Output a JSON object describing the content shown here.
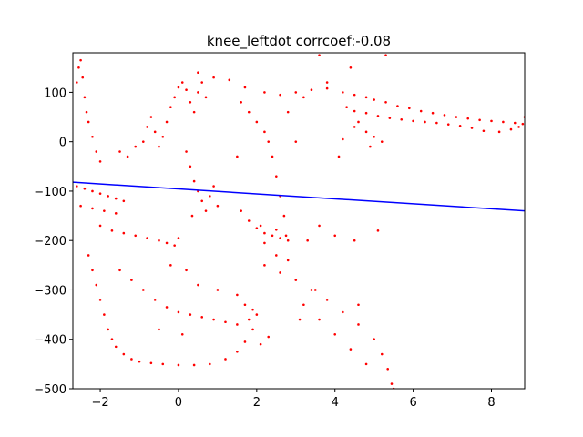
{
  "chart_data": {
    "type": "scatter",
    "title": "knee_leftdot corrcoef:-0.08",
    "xlabel": "",
    "ylabel": "",
    "xlim": [
      -2.7,
      8.85
    ],
    "ylim": [
      -500,
      180
    ],
    "x_ticks": [
      -2,
      0,
      2,
      4,
      6,
      8
    ],
    "y_ticks": [
      100,
      0,
      -100,
      -200,
      -300,
      -400,
      -500
    ],
    "grid": false,
    "legend": "none",
    "colors": {
      "points": "#ff0000",
      "fit_line": "#0000ff",
      "axes": "#000000",
      "background": "#ffffff"
    },
    "series": [
      {
        "kind": "scatter",
        "points": [
          [
            -2.6,
            120
          ],
          [
            -2.55,
            150
          ],
          [
            -2.5,
            165
          ],
          [
            -2.45,
            130
          ],
          [
            -2.4,
            90
          ],
          [
            -2.35,
            60
          ],
          [
            -2.3,
            40
          ],
          [
            -2.2,
            10
          ],
          [
            -2.1,
            -20
          ],
          [
            -2.0,
            -40
          ],
          [
            -2.6,
            -90
          ],
          [
            -2.4,
            -95
          ],
          [
            -2.2,
            -100
          ],
          [
            -2.0,
            -105
          ],
          [
            -1.8,
            -110
          ],
          [
            -1.6,
            -115
          ],
          [
            -1.4,
            -120
          ],
          [
            -2.5,
            -130
          ],
          [
            -2.2,
            -135
          ],
          [
            -1.9,
            -140
          ],
          [
            -1.6,
            -145
          ],
          [
            -2.0,
            -170
          ],
          [
            -1.7,
            -180
          ],
          [
            -1.4,
            -185
          ],
          [
            -1.1,
            -190
          ],
          [
            -0.8,
            -195
          ],
          [
            -0.5,
            -200
          ],
          [
            -0.3,
            -205
          ],
          [
            -0.1,
            -210
          ],
          [
            0.0,
            -195
          ],
          [
            -1.5,
            -20
          ],
          [
            -1.3,
            -30
          ],
          [
            -1.1,
            -10
          ],
          [
            -0.9,
            0
          ],
          [
            -0.8,
            30
          ],
          [
            -0.7,
            50
          ],
          [
            -0.6,
            20
          ],
          [
            -0.5,
            -10
          ],
          [
            -0.4,
            10
          ],
          [
            -0.3,
            40
          ],
          [
            -0.2,
            70
          ],
          [
            -0.1,
            90
          ],
          [
            0.0,
            110
          ],
          [
            0.1,
            120
          ],
          [
            0.2,
            105
          ],
          [
            0.3,
            80
          ],
          [
            0.4,
            60
          ],
          [
            0.5,
            100
          ],
          [
            0.6,
            120
          ],
          [
            0.7,
            90
          ],
          [
            0.2,
            -20
          ],
          [
            0.3,
            -50
          ],
          [
            0.4,
            -80
          ],
          [
            0.5,
            -100
          ],
          [
            0.6,
            -120
          ],
          [
            0.7,
            -140
          ],
          [
            0.8,
            -110
          ],
          [
            0.9,
            -90
          ],
          [
            1.0,
            -130
          ],
          [
            0.35,
            -150
          ],
          [
            1.6,
            80
          ],
          [
            1.8,
            60
          ],
          [
            2.0,
            40
          ],
          [
            2.2,
            20
          ],
          [
            2.3,
            0
          ],
          [
            2.4,
            -30
          ],
          [
            2.5,
            -70
          ],
          [
            2.6,
            -110
          ],
          [
            2.7,
            -150
          ],
          [
            2.75,
            -190
          ],
          [
            1.6,
            -140
          ],
          [
            1.8,
            -160
          ],
          [
            2.0,
            -175
          ],
          [
            2.2,
            -185
          ],
          [
            2.4,
            -190
          ],
          [
            2.6,
            -195
          ],
          [
            2.8,
            -200
          ],
          [
            2.2,
            -205
          ],
          [
            2.5,
            -178
          ],
          [
            2.1,
            -170
          ],
          [
            -2.3,
            -230
          ],
          [
            -2.2,
            -260
          ],
          [
            -2.1,
            -290
          ],
          [
            -2.0,
            -320
          ],
          [
            -1.9,
            -350
          ],
          [
            -1.8,
            -380
          ],
          [
            -1.7,
            -400
          ],
          [
            -1.6,
            -415
          ],
          [
            -1.4,
            -430
          ],
          [
            -1.2,
            -440
          ],
          [
            -1.0,
            -445
          ],
          [
            -0.7,
            -448
          ],
          [
            -0.4,
            -450
          ],
          [
            0.0,
            -452
          ],
          [
            0.4,
            -452
          ],
          [
            0.8,
            -450
          ],
          [
            1.2,
            -440
          ],
          [
            1.5,
            -425
          ],
          [
            1.7,
            -405
          ],
          [
            1.9,
            -380
          ],
          [
            -1.5,
            -260
          ],
          [
            -1.2,
            -280
          ],
          [
            -0.9,
            -300
          ],
          [
            -0.6,
            -320
          ],
          [
            -0.3,
            -335
          ],
          [
            0.0,
            -345
          ],
          [
            0.3,
            -350
          ],
          [
            0.6,
            -355
          ],
          [
            0.9,
            -360
          ],
          [
            1.2,
            -365
          ],
          [
            1.5,
            -370
          ],
          [
            1.8,
            -360
          ],
          [
            2.0,
            -350
          ],
          [
            1.9,
            -340
          ],
          [
            1.7,
            -330
          ],
          [
            0.5,
            -290
          ],
          [
            1.0,
            -300
          ],
          [
            1.5,
            -310
          ],
          [
            0.2,
            -260
          ],
          [
            -0.2,
            -250
          ],
          [
            2.2,
            -250
          ],
          [
            2.6,
            -265
          ],
          [
            3.0,
            -280
          ],
          [
            3.4,
            -300
          ],
          [
            3.8,
            -320
          ],
          [
            4.2,
            -345
          ],
          [
            4.6,
            -370
          ],
          [
            5.0,
            -400
          ],
          [
            5.2,
            -430
          ],
          [
            5.35,
            -460
          ],
          [
            5.45,
            -490
          ],
          [
            5.5,
            -500
          ],
          [
            3.2,
            -330
          ],
          [
            3.6,
            -360
          ],
          [
            4.0,
            -390
          ],
          [
            4.4,
            -420
          ],
          [
            4.8,
            -450
          ],
          [
            2.8,
            -240
          ],
          [
            2.5,
            -230
          ],
          [
            3.5,
            -300
          ],
          [
            0.5,
            140
          ],
          [
            0.9,
            130
          ],
          [
            1.3,
            125
          ],
          [
            1.7,
            110
          ],
          [
            2.2,
            100
          ],
          [
            2.6,
            95
          ],
          [
            3.0,
            100
          ],
          [
            3.4,
            105
          ],
          [
            3.8,
            108
          ],
          [
            4.2,
            100
          ],
          [
            4.5,
            95
          ],
          [
            4.8,
            90
          ],
          [
            5.0,
            85
          ],
          [
            5.3,
            80
          ],
          [
            5.6,
            72
          ],
          [
            5.9,
            68
          ],
          [
            6.2,
            62
          ],
          [
            6.5,
            58
          ],
          [
            6.8,
            54
          ],
          [
            7.1,
            50
          ],
          [
            7.4,
            47
          ],
          [
            7.7,
            44
          ],
          [
            8.0,
            42
          ],
          [
            8.3,
            40
          ],
          [
            8.6,
            38
          ],
          [
            8.8,
            36
          ],
          [
            8.85,
            50
          ],
          [
            8.7,
            30
          ],
          [
            8.5,
            25
          ],
          [
            8.2,
            20
          ],
          [
            7.8,
            22
          ],
          [
            7.5,
            28
          ],
          [
            7.2,
            32
          ],
          [
            6.9,
            35
          ],
          [
            6.6,
            38
          ],
          [
            6.3,
            40
          ],
          [
            6.0,
            42
          ],
          [
            5.7,
            45
          ],
          [
            5.4,
            48
          ],
          [
            5.1,
            52
          ],
          [
            4.8,
            58
          ],
          [
            4.5,
            62
          ],
          [
            4.3,
            70
          ],
          [
            4.6,
            40
          ],
          [
            4.8,
            20
          ],
          [
            5.0,
            10
          ],
          [
            5.2,
            0
          ],
          [
            4.9,
            -10
          ],
          [
            4.5,
            30
          ],
          [
            4.2,
            5
          ],
          [
            3.8,
            120
          ],
          [
            4.4,
            150
          ],
          [
            5.3,
            175
          ],
          [
            3.6,
            175
          ],
          [
            3.2,
            90
          ],
          [
            2.8,
            60
          ],
          [
            3.0,
            0
          ],
          [
            4.1,
            -30
          ],
          [
            4.5,
            -200
          ],
          [
            3.6,
            -170
          ],
          [
            4.0,
            -190
          ],
          [
            3.3,
            -200
          ],
          [
            5.1,
            -180
          ],
          [
            0.1,
            -390
          ],
          [
            2.3,
            -395
          ],
          [
            2.1,
            -410
          ],
          [
            3.1,
            -360
          ],
          [
            -0.5,
            -380
          ],
          [
            4.6,
            -330
          ],
          [
            1.5,
            -30
          ]
        ]
      },
      {
        "kind": "line",
        "label": "",
        "points": [
          [
            -2.7,
            -82
          ],
          [
            8.85,
            -140
          ]
        ]
      }
    ]
  }
}
